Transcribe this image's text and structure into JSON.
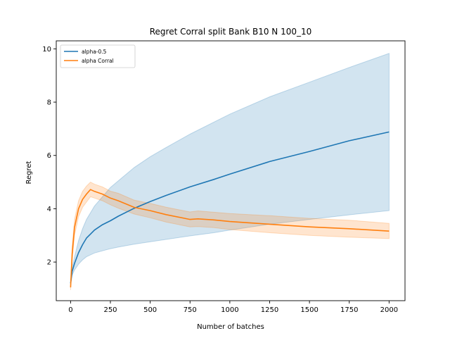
{
  "chart_data": {
    "type": "line",
    "title": "Regret Corral split Bank B10 N 100_10",
    "xlabel": "Number of batches",
    "ylabel": "Regret",
    "xlim": [
      -90,
      2100
    ],
    "ylim": [
      0.55,
      10.3
    ],
    "xticks": [
      0,
      250,
      500,
      750,
      1000,
      1250,
      1500,
      1750,
      2000
    ],
    "xtick_labels": [
      "0",
      "250",
      "500",
      "750",
      "1000",
      "1250",
      "1500",
      "1750",
      "2000"
    ],
    "yticks": [
      2,
      4,
      6,
      8,
      10
    ],
    "ytick_labels": [
      "2",
      "4",
      "6",
      "8",
      "10"
    ],
    "grid": false,
    "legend_position": "top-left",
    "series": [
      {
        "name": "alpha-0.5",
        "color": "#1f77b4",
        "band_color": "#1f77b4",
        "x": [
          0,
          10,
          25,
          50,
          75,
          100,
          150,
          200,
          250,
          300,
          400,
          500,
          600,
          750,
          900,
          1000,
          1250,
          1500,
          1750,
          2000
        ],
        "y": [
          1.2,
          1.65,
          1.95,
          2.35,
          2.65,
          2.9,
          3.2,
          3.4,
          3.55,
          3.72,
          4.02,
          4.27,
          4.5,
          4.82,
          5.1,
          5.3,
          5.77,
          6.15,
          6.55,
          6.88
        ],
        "lower": [
          1.1,
          1.5,
          1.7,
          1.92,
          2.08,
          2.2,
          2.34,
          2.42,
          2.5,
          2.56,
          2.67,
          2.76,
          2.85,
          2.98,
          3.1,
          3.2,
          3.42,
          3.6,
          3.77,
          3.93
        ],
        "upper": [
          1.3,
          1.8,
          2.2,
          2.8,
          3.25,
          3.6,
          4.1,
          4.45,
          4.8,
          5.05,
          5.55,
          5.95,
          6.3,
          6.8,
          7.25,
          7.55,
          8.2,
          8.75,
          9.3,
          9.83
        ]
      },
      {
        "name": "alpha Corral",
        "color": "#ff7f0e",
        "band_color": "#ff7f0e",
        "x": [
          0,
          10,
          25,
          50,
          75,
          100,
          125,
          150,
          200,
          250,
          300,
          400,
          500,
          600,
          750,
          800,
          900,
          1000,
          1250,
          1500,
          1750,
          2000
        ],
        "y": [
          1.05,
          2.3,
          3.3,
          4.0,
          4.35,
          4.55,
          4.72,
          4.65,
          4.55,
          4.4,
          4.3,
          4.05,
          3.93,
          3.78,
          3.6,
          3.62,
          3.58,
          3.52,
          3.42,
          3.32,
          3.25,
          3.16
        ],
        "lower": [
          0.95,
          2.0,
          3.0,
          3.7,
          4.05,
          4.25,
          4.45,
          4.4,
          4.3,
          4.15,
          4.02,
          3.8,
          3.66,
          3.5,
          3.32,
          3.33,
          3.29,
          3.22,
          3.1,
          3.0,
          2.93,
          2.88
        ],
        "upper": [
          1.15,
          2.6,
          3.6,
          4.3,
          4.65,
          4.85,
          5.0,
          4.92,
          4.82,
          4.66,
          4.58,
          4.32,
          4.2,
          4.06,
          3.88,
          3.92,
          3.87,
          3.82,
          3.74,
          3.64,
          3.57,
          3.45
        ]
      }
    ]
  }
}
